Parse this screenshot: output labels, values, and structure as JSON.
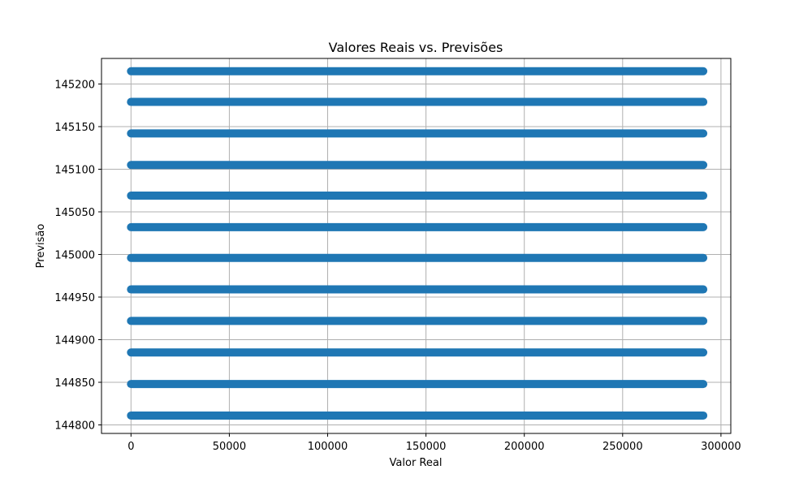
{
  "chart_data": {
    "type": "scatter",
    "title": "Valores Reais vs. Previsões",
    "xlabel": "Valor Real",
    "ylabel": "Previsão",
    "xlim": [
      -15000,
      305000
    ],
    "ylim": [
      144790,
      145230
    ],
    "xticks": [
      0,
      50000,
      100000,
      150000,
      200000,
      250000,
      300000
    ],
    "xtick_labels": [
      "0",
      "50000",
      "100000",
      "150000",
      "200000",
      "250000",
      "300000"
    ],
    "yticks": [
      144800,
      144850,
      144900,
      144950,
      145000,
      145050,
      145100,
      145150,
      145200
    ],
    "ytick_labels": [
      "144800",
      "144850",
      "144900",
      "144950",
      "145000",
      "145050",
      "145100",
      "145150",
      "145200"
    ],
    "grid": true,
    "series": [
      {
        "color": "#1f77b4",
        "marker": "circle",
        "x_range": [
          0,
          291000
        ],
        "y_levels": [
          144811,
          144848,
          144885,
          144922,
          144959,
          144996,
          145032,
          145069,
          145105,
          145142,
          145179,
          145215
        ]
      }
    ]
  }
}
